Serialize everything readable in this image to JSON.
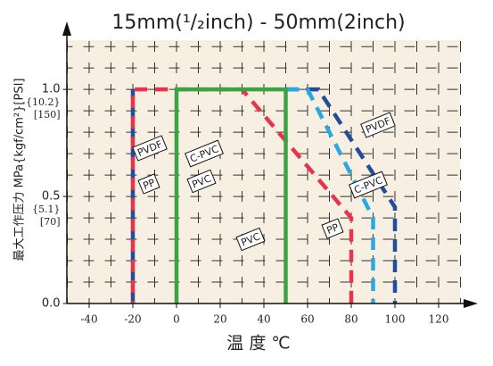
{
  "chart_data": {
    "type": "line",
    "title": "15mm(¹/₂inch) - 50mm(2inch)",
    "x_label": "温 度 ℃",
    "y_label": "最大工作压力 MPa{kgf/cm²}[PSI]",
    "xlim": [
      -50,
      130
    ],
    "ylim": [
      0,
      1.23
    ],
    "xticks": [
      -40,
      0,
      20,
      40,
      60,
      80,
      100,
      120,
      {
        "value": -20,
        "label": "-20"
      }
    ],
    "yticks": [
      {
        "value": 0,
        "label": "0.0"
      },
      {
        "value": 0.5,
        "label": "0.5",
        "kgf": "{5.1}",
        "psi": "[70]"
      },
      {
        "value": 1,
        "label": "1.0",
        "kgf": "{10.2}",
        "psi": "[150]"
      }
    ],
    "grid": true,
    "xgrid": [
      -50,
      -40,
      -30,
      -20,
      -10,
      0,
      10,
      20,
      30,
      40,
      50,
      60,
      70,
      80,
      90,
      100,
      110,
      120,
      130
    ],
    "ygrid": [
      0.1,
      0.2,
      0.3,
      0.4,
      0.5,
      0.6,
      0.7,
      0.8,
      0.9,
      1.0,
      1.1,
      1.2
    ],
    "series": [
      {
        "color": "#1f4e9c",
        "dashed": true,
        "x": [
          -20,
          -20,
          null,
          50,
          65,
          100,
          100
        ],
        "values": [
          0,
          1.0,
          null,
          1.0,
          1.0,
          0.45,
          0
        ]
      },
      {
        "color": "#e8334a",
        "dashed": true,
        "x": [
          -20,
          -20,
          30,
          80,
          80
        ],
        "values": [
          0,
          1.0,
          1.0,
          0.4,
          0
        ]
      },
      {
        "color": "#2aa9e0",
        "dashed": true,
        "x": [
          50,
          60,
          90,
          90
        ],
        "values": [
          1.0,
          1.0,
          0.4,
          0
        ]
      },
      {
        "color": "#3aa344",
        "dashed": false,
        "x": [
          0,
          0,
          50,
          50
        ],
        "values": [
          0,
          1.0,
          1.0,
          0
        ]
      }
    ],
    "annotations": [
      "PVDF",
      "PP",
      "C-PVC",
      "PVC",
      "PVC",
      "PP",
      "C-PVC",
      "PVDF"
    ]
  }
}
